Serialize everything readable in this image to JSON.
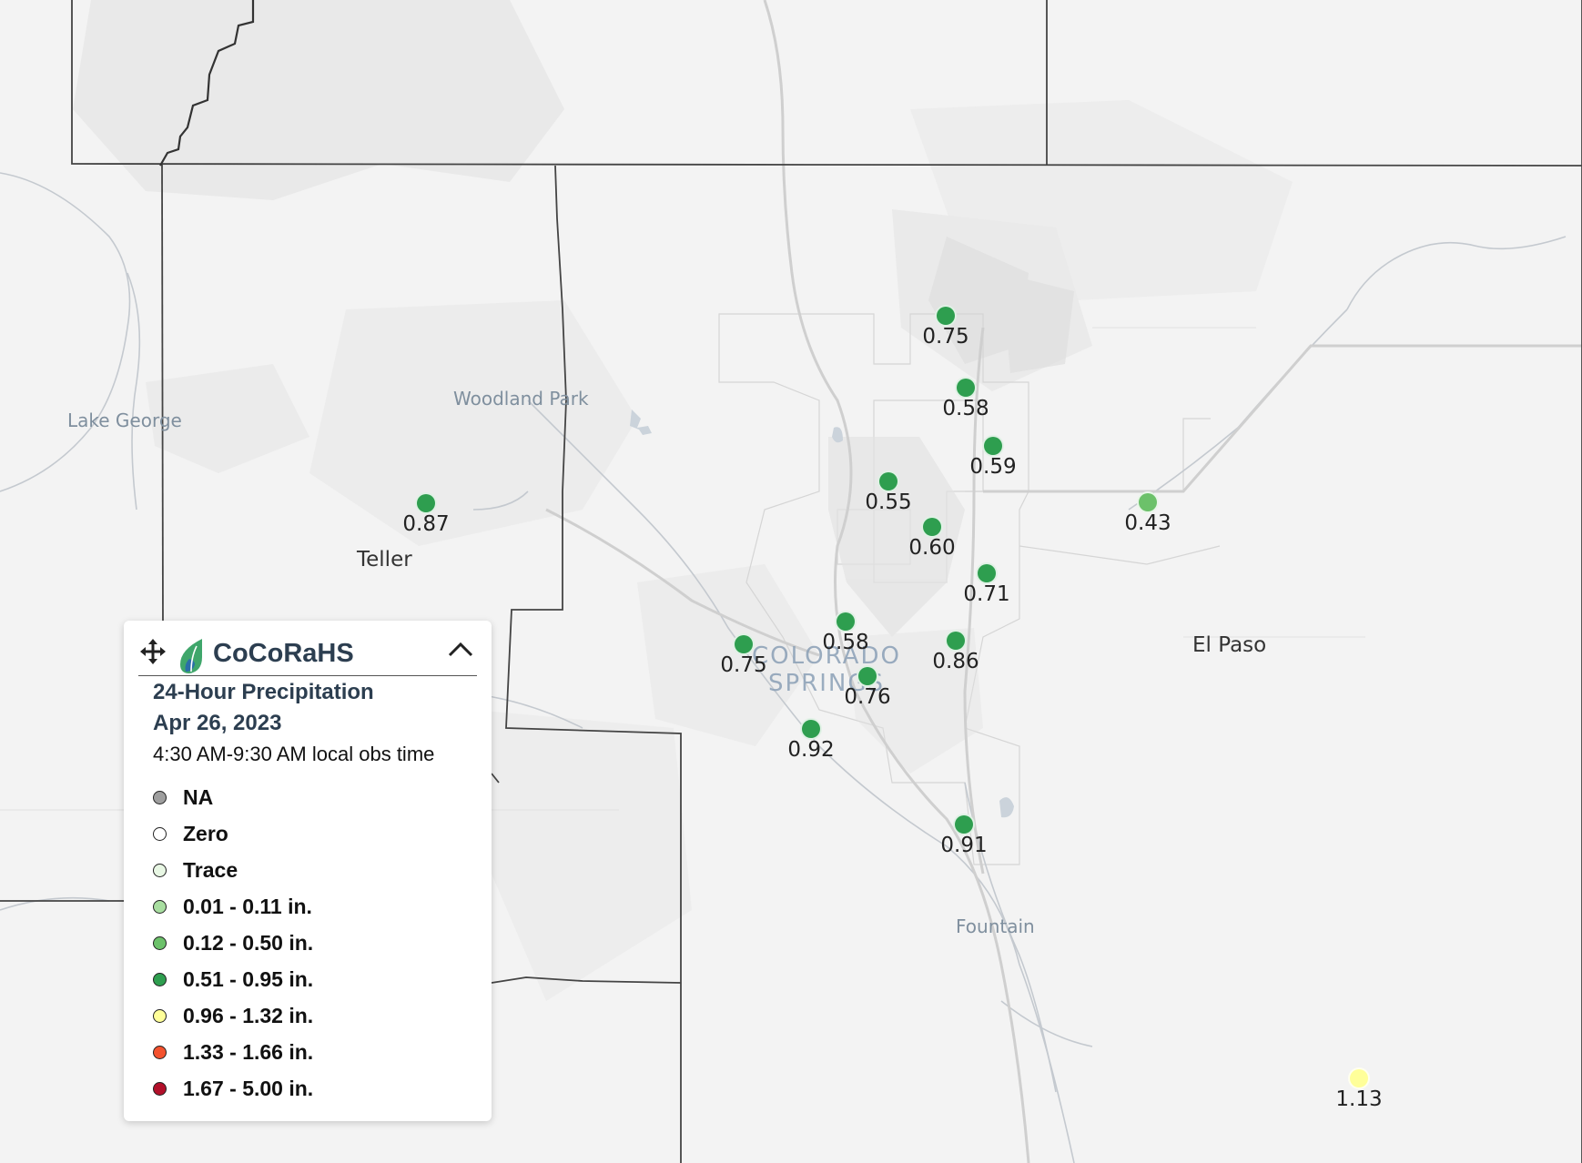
{
  "places": {
    "lake_george": "Lake George",
    "woodland_park": "Woodland Park",
    "teller": "Teller",
    "colorado_springs": "COLORADO\nSPRINGS",
    "el_paso": "El Paso",
    "fountain": "Fountain"
  },
  "stations": [
    {
      "value": "0.75",
      "category": "0.51 - 0.95 in."
    },
    {
      "value": "0.58",
      "category": "0.51 - 0.95 in."
    },
    {
      "value": "0.59",
      "category": "0.51 - 0.95 in."
    },
    {
      "value": "0.55",
      "category": "0.51 - 0.95 in."
    },
    {
      "value": "0.60",
      "category": "0.51 - 0.95 in."
    },
    {
      "value": "0.71",
      "category": "0.51 - 0.95 in."
    },
    {
      "value": "0.43",
      "category": "0.12 - 0.50 in."
    },
    {
      "value": "0.87",
      "category": "0.51 - 0.95 in."
    },
    {
      "value": "0.58",
      "category": "0.51 - 0.95 in."
    },
    {
      "value": "0.86",
      "category": "0.51 - 0.95 in."
    },
    {
      "value": "0.75",
      "category": "0.51 - 0.95 in."
    },
    {
      "value": "0.76",
      "category": "0.51 - 0.95 in."
    },
    {
      "value": "0.92",
      "category": "0.51 - 0.95 in."
    },
    {
      "value": "0.91",
      "category": "0.51 - 0.95 in."
    },
    {
      "value": "1.13",
      "category": "0.96 - 1.32 in."
    }
  ],
  "legend": {
    "brand": "CoCoRaHS",
    "title_line1": "24-Hour Precipitation",
    "title_line2": "Apr 26, 2023",
    "obs_time": "4:30 AM-9:30 AM local obs time",
    "move_icon": "move-arrows-icon",
    "collapse_icon": "chevron-up-icon",
    "items": [
      {
        "label": "NA",
        "color": "#9e9e9e"
      },
      {
        "label": "Zero",
        "color": "#ffffff"
      },
      {
        "label": "Trace",
        "color": "#e8f7e4"
      },
      {
        "label": "0.01 - 0.11 in.",
        "color": "#a8dea0"
      },
      {
        "label": "0.12 - 0.50 in.",
        "color": "#6cc16a"
      },
      {
        "label": "0.51 - 0.95 in.",
        "color": "#2e9e4f"
      },
      {
        "label": "0.96 - 1.32 in.",
        "color": "#ffff99"
      },
      {
        "label": "1.33 - 1.66 in.",
        "color": "#f4522e"
      },
      {
        "label": "1.67 - 5.00 in.",
        "color": "#b2102a"
      }
    ]
  }
}
